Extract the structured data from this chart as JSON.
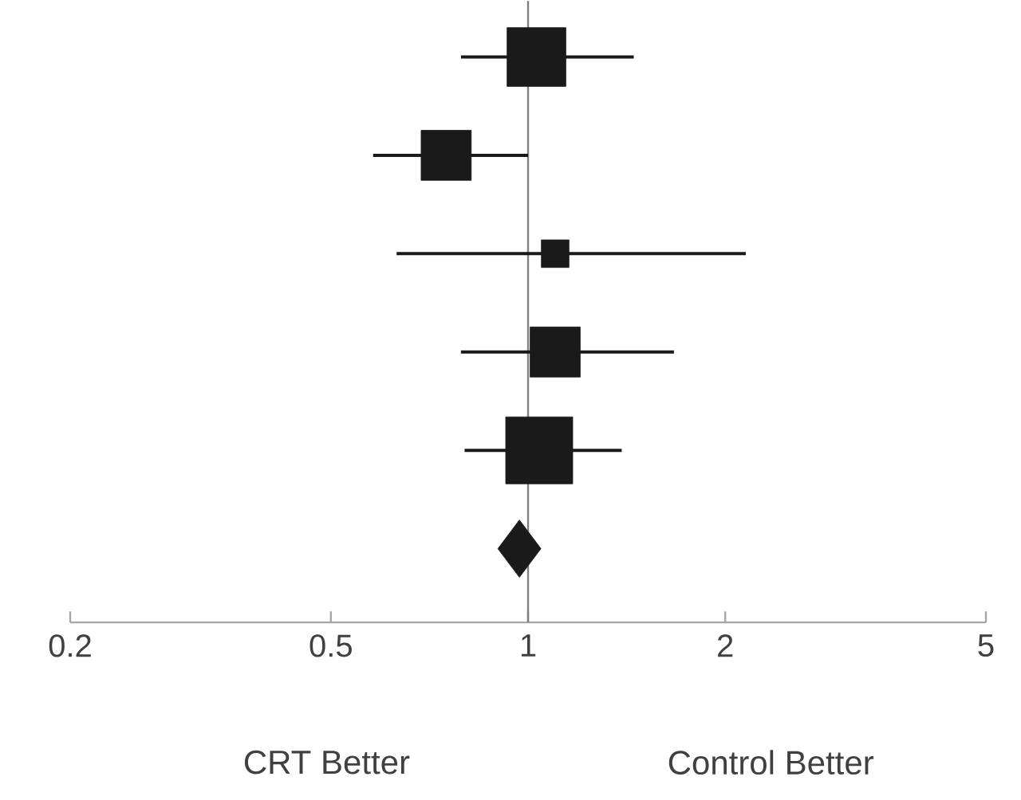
{
  "chart_data": {
    "type": "bubble",
    "orientation": "horizontal",
    "log": "x",
    "categories": [
      null,
      null,
      null,
      null,
      null,
      null
    ],
    "series": [
      {
        "marker": "square",
        "color": "#1a1a1a",
        "values": [
          1.03,
          0.75,
          1.1,
          1.1,
          1.04,
          null
        ],
        "sizes": [
          0.77,
          0.56,
          0.17,
          0.56,
          1,
          null
        ],
        "errors": [
          [
            0.79,
            1.45
          ],
          [
            0.58,
            1.0
          ],
          [
            0.63,
            2.15
          ],
          [
            0.79,
            1.67
          ],
          [
            0.8,
            1.39
          ],
          null
        ]
      },
      {
        "type": "scatter",
        "marker": "diamond",
        "color": "#1a1a1a",
        "values": [
          null,
          null,
          null,
          null,
          null,
          0.97
        ]
      }
    ],
    "xlim": [
      0.2,
      5
    ],
    "xticks": [
      0.2,
      0.5,
      1,
      2,
      5
    ],
    "tick_labels": "x",
    "ref_lines": [
      {
        "axis": "x",
        "value": 1,
        "color": "#808080"
      }
    ],
    "annotations": [
      "CRT Better",
      "Control Better"
    ]
  }
}
